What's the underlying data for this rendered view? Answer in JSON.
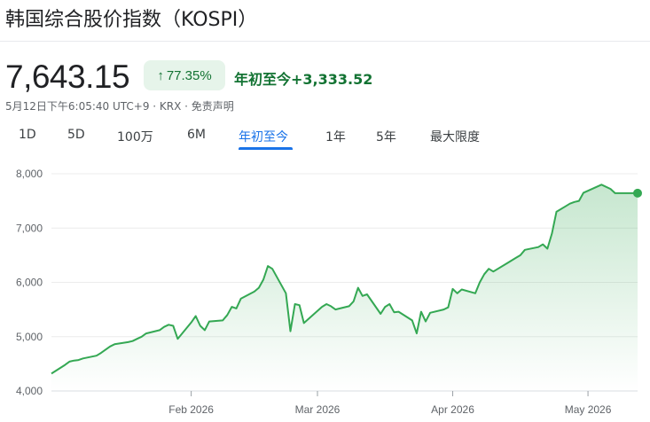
{
  "header": {
    "title": "韩国综合股价指数（KOSPI）",
    "price": "7,643.15",
    "percent_change": "77.35%",
    "arrow": "↑",
    "change_label": "年初至今+3,333.52",
    "meta": "5月12日下午6:05:40 UTC+9 · KRX · 免责声明"
  },
  "tabs": [
    "1D",
    "5D",
    "100万",
    "6M",
    "年初至今",
    "1年",
    "5年",
    "最大限度"
  ],
  "active_tab": "年初至今",
  "colors": {
    "line": "#34a853",
    "fill": "#e6f4ea",
    "active_tab": "#1a73e8",
    "positive": "#137333"
  },
  "chart_data": {
    "type": "area",
    "ylim": [
      4000,
      8000
    ],
    "yticks": [
      4000,
      5000,
      6000,
      7000,
      8000
    ],
    "ytick_labels": [
      "4,000",
      "5,000",
      "6,000",
      "7,000",
      "8,000"
    ],
    "xticks": [
      "2026-02-02",
      "2026-03-02",
      "2026-04-01",
      "2026-05-01"
    ],
    "xtick_labels": [
      "Feb 2026",
      "Mar 2026",
      "Apr 2026",
      "May 2026"
    ],
    "x": [
      "2026-01-02",
      "2026-01-05",
      "2026-01-06",
      "2026-01-07",
      "2026-01-08",
      "2026-01-09",
      "2026-01-12",
      "2026-01-13",
      "2026-01-14",
      "2026-01-15",
      "2026-01-16",
      "2026-01-19",
      "2026-01-20",
      "2026-01-21",
      "2026-01-22",
      "2026-01-23",
      "2026-01-26",
      "2026-01-27",
      "2026-01-28",
      "2026-01-29",
      "2026-01-30",
      "2026-02-02",
      "2026-02-03",
      "2026-02-04",
      "2026-02-05",
      "2026-02-06",
      "2026-02-09",
      "2026-02-10",
      "2026-02-11",
      "2026-02-12",
      "2026-02-13",
      "2026-02-16",
      "2026-02-17",
      "2026-02-18",
      "2026-02-19",
      "2026-02-20",
      "2026-02-23",
      "2026-02-24",
      "2026-02-25",
      "2026-02-26",
      "2026-02-27",
      "2026-03-03",
      "2026-03-04",
      "2026-03-05",
      "2026-03-06",
      "2026-03-09",
      "2026-03-10",
      "2026-03-11",
      "2026-03-12",
      "2026-03-13",
      "2026-03-16",
      "2026-03-17",
      "2026-03-18",
      "2026-03-19",
      "2026-03-20",
      "2026-03-23",
      "2026-03-24",
      "2026-03-25",
      "2026-03-26",
      "2026-03-27",
      "2026-03-30",
      "2026-03-31",
      "2026-04-01",
      "2026-04-02",
      "2026-04-03",
      "2026-04-06",
      "2026-04-07",
      "2026-04-08",
      "2026-04-09",
      "2026-04-10",
      "2026-04-13",
      "2026-04-14",
      "2026-04-15",
      "2026-04-16",
      "2026-04-17",
      "2026-04-20",
      "2026-04-21",
      "2026-04-22",
      "2026-04-23",
      "2026-04-24",
      "2026-04-27",
      "2026-04-28",
      "2026-04-29",
      "2026-04-30",
      "2026-05-04",
      "2026-05-06",
      "2026-05-07",
      "2026-05-08",
      "2026-05-11",
      "2026-05-12"
    ],
    "values": [
      4320,
      4480,
      4540,
      4560,
      4570,
      4600,
      4650,
      4700,
      4760,
      4820,
      4860,
      4900,
      4920,
      4960,
      5000,
      5060,
      5120,
      5180,
      5220,
      5200,
      4960,
      5260,
      5380,
      5200,
      5120,
      5280,
      5300,
      5400,
      5550,
      5520,
      5700,
      5830,
      5900,
      6050,
      6300,
      6250,
      5800,
      5100,
      5600,
      5580,
      5250,
      5550,
      5600,
      5560,
      5500,
      5560,
      5650,
      5900,
      5750,
      5780,
      5420,
      5550,
      5600,
      5450,
      5460,
      5300,
      5060,
      5460,
      5280,
      5440,
      5500,
      5540,
      5880,
      5800,
      5870,
      5800,
      6000,
      6150,
      6250,
      6200,
      6350,
      6400,
      6450,
      6500,
      6600,
      6650,
      6700,
      6620,
      6900,
      7300,
      7450,
      7480,
      7500,
      7650,
      7800,
      7720,
      7643.15,
      7643.15,
      7643.15,
      7643.15
    ]
  }
}
